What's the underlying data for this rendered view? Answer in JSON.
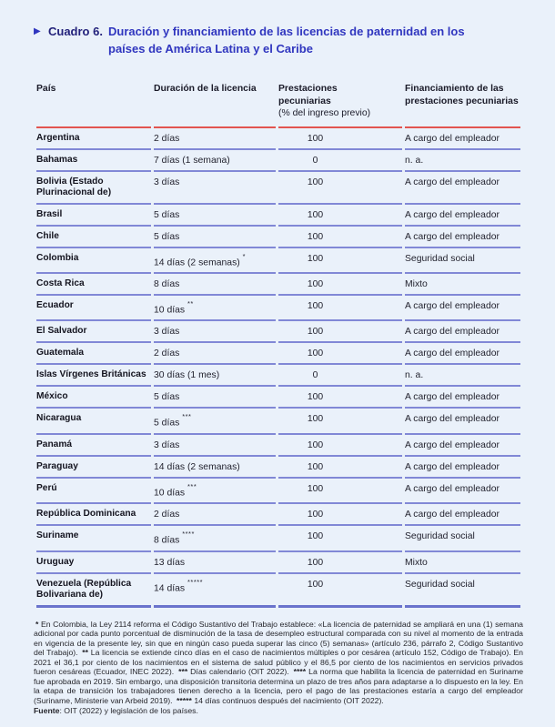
{
  "colors": {
    "background": "#eaf1fa",
    "accent_blue": "#3036bf",
    "label_navy": "#23227b",
    "rule_red": "#e25450",
    "row_line_blue": "#8188d6",
    "row_line_strong": "#6a73cc"
  },
  "header": {
    "marker": "▶",
    "label": "Cuadro 6.",
    "title_lines": [
      "Duración y financiamiento de las licencias de paternidad en los",
      "países de América Latina y el Caribe"
    ]
  },
  "table": {
    "columns": [
      {
        "label": "País"
      },
      {
        "label": "Duración de la licencia"
      },
      {
        "label": "Prestaciones pecuniarias",
        "sublabel": "(% del ingreso previo)"
      },
      {
        "label": "Financiamiento de las prestaciones pecuniarias"
      }
    ],
    "rows": [
      {
        "country": "Argentina",
        "duration": "2 días",
        "note": "",
        "benefit": "100",
        "financing": "A cargo del empleador"
      },
      {
        "country": "Bahamas",
        "duration": "7 días (1 semana)",
        "note": "",
        "benefit": "0",
        "financing": "n. a."
      },
      {
        "country": "Bolivia (Estado Plurinacional de)",
        "duration": "3 días",
        "note": "",
        "benefit": "100",
        "financing": "A cargo del empleador"
      },
      {
        "country": "Brasil",
        "duration": "5 días",
        "note": "",
        "benefit": "100",
        "financing": "A cargo del empleador"
      },
      {
        "country": "Chile",
        "duration": "5 días",
        "note": "",
        "benefit": "100",
        "financing": "A cargo del empleador"
      },
      {
        "country": "Colombia",
        "duration": "14 días (2 semanas)",
        "note": "*",
        "benefit": "100",
        "financing": "Seguridad social"
      },
      {
        "country": "Costa Rica",
        "duration": "8 días",
        "note": "",
        "benefit": "100",
        "financing": "Mixto"
      },
      {
        "country": "Ecuador",
        "duration": "10 días",
        "note": "**",
        "benefit": "100",
        "financing": "A cargo del empleador"
      },
      {
        "country": "El Salvador",
        "duration": "3 días",
        "note": "",
        "benefit": "100",
        "financing": "A cargo del empleador"
      },
      {
        "country": "Guatemala",
        "duration": "2 días",
        "note": "",
        "benefit": "100",
        "financing": "A cargo del empleador"
      },
      {
        "country": "Islas Vírgenes Británicas",
        "duration": "30 días (1 mes)",
        "note": "",
        "benefit": "0",
        "financing": "n. a."
      },
      {
        "country": "México",
        "duration": "5 días",
        "note": "",
        "benefit": "100",
        "financing": "A cargo del empleador"
      },
      {
        "country": "Nicaragua",
        "duration": "5 días",
        "note": "***",
        "benefit": "100",
        "financing": "A cargo del empleador"
      },
      {
        "country": "Panamá",
        "duration": "3 días",
        "note": "",
        "benefit": "100",
        "financing": "A cargo del empleador"
      },
      {
        "country": "Paraguay",
        "duration": "14 días (2 semanas)",
        "note": "",
        "benefit": "100",
        "financing": "A cargo del empleador"
      },
      {
        "country": "Perú",
        "duration": "10 días",
        "note": "***",
        "benefit": "100",
        "financing": "A cargo del empleador"
      },
      {
        "country": "República Dominicana",
        "duration": "2 días",
        "note": "",
        "benefit": "100",
        "financing": "A cargo del empleador"
      },
      {
        "country": "Suriname",
        "duration": "8 días",
        "note": "****",
        "benefit": "100",
        "financing": "Seguridad social"
      },
      {
        "country": "Uruguay",
        "duration": "13 días",
        "note": "",
        "benefit": "100",
        "financing": "Mixto"
      },
      {
        "country": "Venezuela (República Bolivariana de)",
        "duration": "14 días",
        "note": "*****",
        "benefit": "100",
        "financing": "Seguridad social"
      }
    ]
  },
  "footnotes": {
    "segments": [
      {
        "bold": true,
        "text": "* "
      },
      {
        "bold": false,
        "text": "En Colombia, la Ley 2114 reforma el Código Sustantivo del Trabajo establece: «La licencia de paternidad se ampliará en una (1) semana adicional por cada punto porcentual de disminución de la tasa de desempleo estructural comparada con su nivel al momento de la entrada en vigencia de la presente ley, sin que en ningún caso pueda superar las cinco (5) semanas» (artículo 236, párrafo 2, Código Sustantivo del Trabajo). "
      },
      {
        "bold": true,
        "text": "** "
      },
      {
        "bold": false,
        "text": "La licencia se extiende cinco días en el caso de nacimientos múltiples o por cesárea (artículo 152, Código de Trabajo). En 2021 el 36,1 por ciento de los nacimientos en el sistema de salud público y el 86,5 por ciento de los nacimientos en servicios privados fueron cesáreas (Ecuador, INEC 2022). "
      },
      {
        "bold": true,
        "text": "*** "
      },
      {
        "bold": false,
        "text": "Días calendario (OIT 2022). "
      },
      {
        "bold": true,
        "text": "**** "
      },
      {
        "bold": false,
        "text": "La norma que habilita la licencia de paternidad en Suriname fue aprobada en 2019. Sin embargo, una disposición transitoria determina un plazo de tres años para adaptarse a lo dispuesto en la ley. En la etapa de transición los trabajadores tienen derecho a la licencia, pero el pago de las prestaciones estaría a cargo del empleador (Suriname, Ministerie van Arbeid 2019). "
      },
      {
        "bold": true,
        "text": "***** "
      },
      {
        "bold": false,
        "text": "14 días continuos después del nacimiento (OIT 2022)."
      }
    ]
  },
  "source": {
    "label": "Fuente",
    "text": ": OIT (2022) y legislación de los países."
  }
}
